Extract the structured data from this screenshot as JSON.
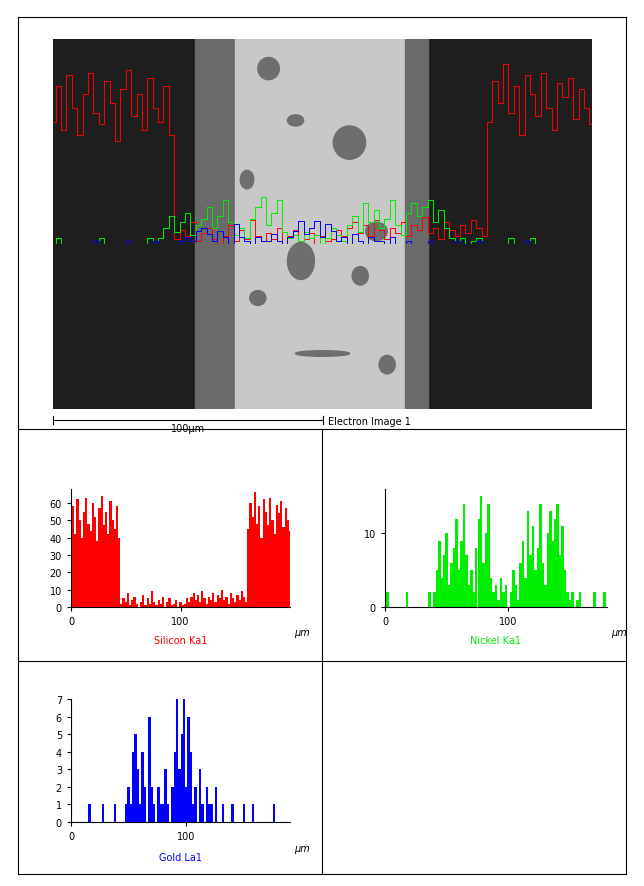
{
  "image": {
    "title": "Electron Image 1",
    "scale_bar": {
      "value": 100,
      "label": "100μm"
    }
  },
  "chart_data": [
    {
      "type": "bar",
      "x_label": "μm",
      "xlim": [
        0,
        200
      ],
      "xticks": [
        0,
        100
      ],
      "ylim": [
        0,
        68
      ],
      "yticks": [
        0,
        10,
        20,
        30,
        40,
        50,
        60
      ],
      "x": [
        0,
        2,
        4,
        6,
        8,
        10,
        12,
        14,
        16,
        18,
        20,
        22,
        24,
        26,
        28,
        30,
        32,
        34,
        36,
        38,
        40,
        42,
        44,
        46,
        48,
        50,
        52,
        54,
        56,
        58,
        60,
        62,
        64,
        66,
        68,
        70,
        72,
        74,
        76,
        78,
        80,
        82,
        84,
        86,
        88,
        90,
        92,
        94,
        96,
        98,
        100,
        102,
        104,
        106,
        108,
        110,
        112,
        114,
        116,
        118,
        120,
        122,
        124,
        126,
        128,
        130,
        132,
        134,
        136,
        138,
        140,
        142,
        144,
        146,
        148,
        150,
        152,
        154,
        156,
        158,
        160,
        162,
        164,
        166,
        168,
        170,
        172,
        174,
        176,
        178,
        180,
        182,
        184,
        186,
        188,
        190,
        192,
        194,
        196,
        198,
        200
      ],
      "series": [
        {
          "name": "Silicon Ka1",
          "color": "#ff0000",
          "values": [
            45,
            58,
            42,
            62,
            50,
            40,
            55,
            63,
            48,
            44,
            60,
            52,
            38,
            57,
            64,
            47,
            55,
            42,
            61,
            50,
            45,
            58,
            40,
            2,
            5,
            3,
            8,
            1,
            4,
            6,
            2,
            0,
            3,
            7,
            1,
            5,
            2,
            9,
            3,
            1,
            4,
            2,
            6,
            0,
            3,
            5,
            1,
            2,
            4,
            0,
            3,
            1,
            2,
            5,
            3,
            6,
            8,
            4,
            7,
            3,
            9,
            5,
            2,
            6,
            4,
            8,
            3,
            7,
            5,
            10,
            4,
            6,
            2,
            8,
            5,
            3,
            7,
            4,
            9,
            6,
            3,
            45,
            60,
            52,
            66,
            48,
            58,
            40,
            62,
            55,
            47,
            63,
            50,
            42,
            59,
            54,
            61,
            46,
            57,
            50,
            44
          ]
        }
      ]
    },
    {
      "type": "bar",
      "x_label": "μm",
      "xlim": [
        0,
        180
      ],
      "xticks": [
        0,
        100
      ],
      "ylim": [
        0,
        16
      ],
      "yticks": [
        0,
        10
      ],
      "x": [
        0,
        2,
        4,
        6,
        8,
        10,
        12,
        14,
        16,
        18,
        20,
        22,
        24,
        26,
        28,
        30,
        32,
        34,
        36,
        38,
        40,
        42,
        44,
        46,
        48,
        50,
        52,
        54,
        56,
        58,
        60,
        62,
        64,
        66,
        68,
        70,
        72,
        74,
        76,
        78,
        80,
        82,
        84,
        86,
        88,
        90,
        92,
        94,
        96,
        98,
        100,
        102,
        104,
        106,
        108,
        110,
        112,
        114,
        116,
        118,
        120,
        122,
        124,
        126,
        128,
        130,
        132,
        134,
        136,
        138,
        140,
        142,
        144,
        146,
        148,
        150,
        152,
        154,
        156,
        158,
        160,
        162,
        164,
        166,
        168,
        170,
        172,
        174,
        176,
        178,
        180
      ],
      "series": [
        {
          "name": "Nickel Ka1",
          "color": "#00ee00",
          "values": [
            0,
            2,
            0,
            0,
            0,
            0,
            0,
            0,
            0,
            2,
            0,
            0,
            0,
            0,
            0,
            0,
            0,
            0,
            2,
            0,
            2,
            5,
            9,
            4,
            7,
            10,
            3,
            6,
            8,
            12,
            5,
            9,
            14,
            7,
            3,
            5,
            2,
            8,
            12,
            15,
            6,
            10,
            14,
            4,
            2,
            3,
            1,
            4,
            2,
            3,
            0,
            2,
            5,
            3,
            1,
            6,
            9,
            4,
            13,
            7,
            11,
            5,
            8,
            14,
            6,
            3,
            10,
            13,
            9,
            12,
            14,
            7,
            11,
            5,
            2,
            1,
            2,
            0,
            1,
            2,
            0,
            0,
            0,
            0,
            0,
            2,
            0,
            0,
            0,
            2,
            0
          ]
        }
      ]
    },
    {
      "type": "bar",
      "x_label": "μm",
      "xlim": [
        0,
        190
      ],
      "xticks": [
        0,
        100
      ],
      "ylim": [
        0,
        7
      ],
      "yticks": [
        0,
        1,
        2,
        3,
        4,
        5,
        6,
        7
      ],
      "x": [
        0,
        2,
        4,
        6,
        8,
        10,
        12,
        14,
        16,
        18,
        20,
        22,
        24,
        26,
        28,
        30,
        32,
        34,
        36,
        38,
        40,
        42,
        44,
        46,
        48,
        50,
        52,
        54,
        56,
        58,
        60,
        62,
        64,
        66,
        68,
        70,
        72,
        74,
        76,
        78,
        80,
        82,
        84,
        86,
        88,
        90,
        92,
        94,
        96,
        98,
        100,
        102,
        104,
        106,
        108,
        110,
        112,
        114,
        116,
        118,
        120,
        122,
        124,
        126,
        128,
        130,
        132,
        134,
        136,
        138,
        140,
        142,
        144,
        146,
        148,
        150,
        152,
        154,
        156,
        158,
        160,
        162,
        164,
        166,
        168,
        170,
        172,
        174,
        176,
        178,
        180,
        182,
        184,
        186,
        188
      ],
      "series": [
        {
          "name": "Gold La1",
          "color": "#0000ff",
          "values": [
            0,
            0,
            0,
            0,
            0,
            0,
            0,
            0,
            1,
            0,
            0,
            0,
            0,
            0,
            1,
            0,
            0,
            0,
            0,
            1,
            0,
            0,
            0,
            0,
            1,
            2,
            1,
            4,
            5,
            3,
            1,
            4,
            2,
            0,
            6,
            2,
            1,
            0,
            2,
            1,
            1,
            3,
            1,
            0,
            2,
            4,
            7,
            3,
            5,
            7,
            2,
            6,
            4,
            1,
            2,
            0,
            3,
            1,
            0,
            2,
            1,
            1,
            0,
            2,
            0,
            0,
            1,
            0,
            0,
            0,
            1,
            0,
            0,
            0,
            0,
            1,
            0,
            0,
            0,
            1,
            0,
            0,
            0,
            0,
            0,
            0,
            0,
            0,
            1,
            0,
            0,
            0,
            0,
            0,
            0
          ]
        }
      ]
    }
  ]
}
